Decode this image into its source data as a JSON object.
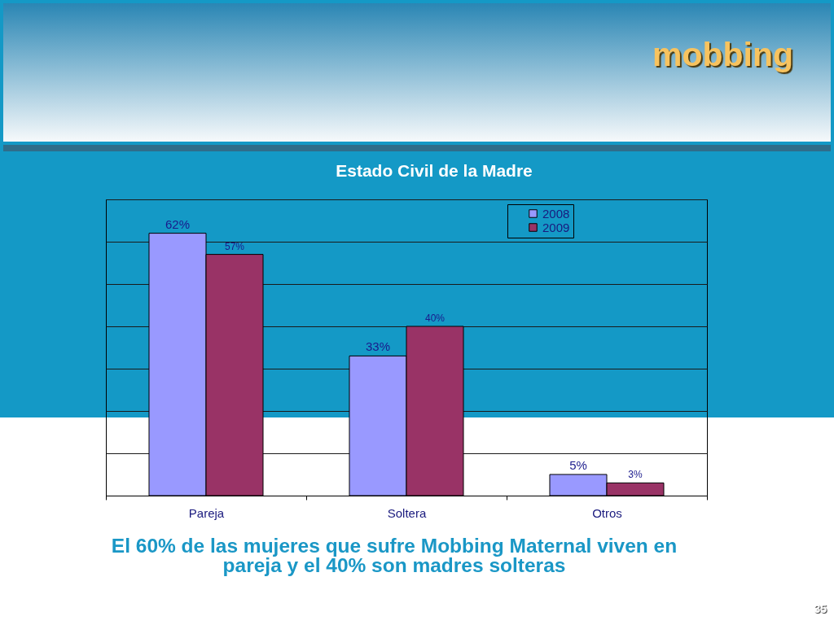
{
  "chart_data": {
    "type": "bar",
    "title": "Estado Civil de la Madre",
    "categories": [
      "Pareja",
      "Soltera",
      "Otros"
    ],
    "series": [
      {
        "name": "2008",
        "color": "#9999ff",
        "values": [
          62,
          33,
          5
        ],
        "value_labels": [
          "62%",
          "33%",
          "5%"
        ]
      },
      {
        "name": "2009",
        "color": "#993366",
        "values": [
          57,
          40,
          3
        ],
        "value_labels": [
          "57%",
          "40%",
          "3%"
        ]
      }
    ],
    "ylim": [
      0,
      70
    ],
    "yticks": [
      {
        "value": 0,
        "label": null
      },
      {
        "value": 10,
        "label": null
      },
      {
        "value": 20,
        "label": null
      },
      {
        "value": 30,
        "label": null
      },
      {
        "value": 40,
        "label": null
      },
      {
        "value": 50,
        "label": null
      },
      {
        "value": 60,
        "label": null
      },
      {
        "value": 70,
        "label": null
      }
    ],
    "grid": "y",
    "tick_labels": "x",
    "legend": "top right",
    "annotations": [
      "mobbing",
      "El 60% de las mujeres que sufre Mobbing Maternal viven en pareja y el 40% son madres solteras",
      "35"
    ]
  }
}
